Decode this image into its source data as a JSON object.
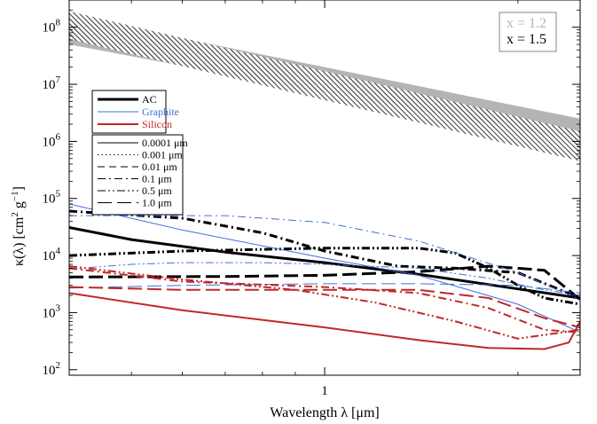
{
  "chart_data": {
    "type": "line",
    "xlabel": "Wavelength λ [μm]",
    "ylabel": "κ(λ) [cm² g⁻¹]",
    "ylabel_parts": {
      "main": "κ(λ) [cm",
      "sup1": "2",
      "mid": " g",
      "sup2": "−1",
      "end": "]"
    },
    "x_scale": "log",
    "y_scale": "log",
    "xlim": [
      0.4,
      2.5
    ],
    "ylim": [
      80,
      300000000
    ],
    "x_ticks": [
      {
        "value": 1,
        "label": "1"
      }
    ],
    "y_ticks": [
      {
        "value": 100,
        "base": "10",
        "exp": "2"
      },
      {
        "value": 1000,
        "base": "10",
        "exp": "3"
      },
      {
        "value": 10000,
        "base": "10",
        "exp": "4"
      },
      {
        "value": 100000,
        "base": "10",
        "exp": "5"
      },
      {
        "value": 1000000,
        "base": "10",
        "exp": "6"
      },
      {
        "value": 10000000,
        "base": "10",
        "exp": "7"
      },
      {
        "value": 100000000,
        "base": "10",
        "exp": "8"
      }
    ],
    "bands": [
      {
        "name": "x = 1.2",
        "color": "#b4b4b4",
        "fill": "solid",
        "x": [
          0.4,
          2.5
        ],
        "upper": [
          160000000,
          2500000
        ],
        "lower": [
          50000000,
          1000000
        ]
      },
      {
        "name": "x = 1.5",
        "color": "#222222",
        "fill": "hatch",
        "x": [
          0.4,
          2.5
        ],
        "upper": [
          190000000,
          1500000
        ],
        "lower": [
          62000000,
          450000
        ]
      }
    ],
    "series": [
      {
        "material": "AC",
        "size": "0.0001 μm",
        "color": "#000000",
        "width": 3,
        "style": "solid",
        "x": [
          0.4,
          0.5,
          0.7,
          1.0,
          1.4,
          2.0,
          2.5
        ],
        "y": [
          31000,
          19000,
          11500,
          7500,
          4700,
          2600,
          1800
        ]
      },
      {
        "material": "AC",
        "size": "0.5 μm",
        "color": "#000000",
        "width": 3,
        "style": "dashdotdot",
        "x": [
          0.4,
          0.6,
          1.0,
          1.4,
          1.6,
          1.8,
          2.0,
          2.2,
          2.5
        ],
        "y": [
          10000,
          12000,
          13500,
          13500,
          11000,
          6000,
          3000,
          1800,
          1400
        ]
      },
      {
        "material": "AC",
        "size": "0.1 μm",
        "color": "#000000",
        "width": 3,
        "style": "dashdot",
        "x": [
          0.4,
          0.6,
          0.8,
          1.0,
          1.3,
          1.6,
          2.0,
          2.5
        ],
        "y": [
          60000,
          45000,
          25000,
          12000,
          6500,
          6000,
          5000,
          1800
        ]
      },
      {
        "material": "AC",
        "size": "1.0 μm",
        "color": "#000000",
        "width": 3,
        "style": "longdash",
        "x": [
          0.4,
          0.7,
          1.0,
          1.4,
          1.8,
          2.0,
          2.2,
          2.5
        ],
        "y": [
          4200,
          4300,
          4500,
          5200,
          6500,
          6000,
          5500,
          1700
        ]
      },
      {
        "material": "Graphite",
        "size": "0.0001 μm",
        "color": "#4070d8",
        "width": 1,
        "style": "solid",
        "x": [
          0.4,
          0.6,
          1.0,
          1.4,
          2.0,
          2.5
        ],
        "y": [
          80000,
          28000,
          9000,
          4500,
          1400,
          450
        ]
      },
      {
        "material": "Graphite",
        "size": "0.5 μm",
        "color": "#4070d8",
        "width": 1,
        "style": "dashdotdot",
        "x": [
          0.4,
          0.5,
          0.6,
          0.8,
          1.0,
          1.4,
          1.8,
          2.2,
          2.5
        ],
        "y": [
          5800,
          7000,
          7500,
          7500,
          7000,
          6000,
          4000,
          2500,
          2000
        ]
      },
      {
        "material": "Graphite",
        "size": "0.1 μm",
        "color": "#4070d8",
        "width": 1,
        "style": "dashdot",
        "x": [
          0.4,
          0.7,
          1.0,
          1.4,
          2.0,
          2.5
        ],
        "y": [
          50000,
          50000,
          38000,
          18000,
          5000,
          1700
        ]
      },
      {
        "material": "Graphite",
        "size": "1.0 μm",
        "color": "#4070d8",
        "width": 1,
        "style": "longdash",
        "x": [
          0.4,
          0.6,
          1.0,
          1.4,
          2.0,
          2.5
        ],
        "y": [
          2700,
          3000,
          3200,
          3200,
          3000,
          2200
        ]
      },
      {
        "material": "Silicon",
        "size": "0.0001 μm",
        "color": "#c02828",
        "width": 2,
        "style": "solid",
        "x": [
          0.4,
          0.6,
          1.0,
          1.4,
          1.8,
          2.2,
          2.4,
          2.5
        ],
        "y": [
          2200,
          1100,
          550,
          330,
          240,
          230,
          300,
          700
        ]
      },
      {
        "material": "Silicon",
        "size": "0.5 μm",
        "color": "#c02828",
        "width": 2,
        "style": "dashdotdot",
        "x": [
          0.4,
          0.6,
          0.9,
          1.2,
          1.6,
          2.0,
          2.5
        ],
        "y": [
          6500,
          3800,
          2500,
          1500,
          700,
          350,
          500
        ]
      },
      {
        "material": "Silicon",
        "size": "0.1 μm",
        "color": "#c02828",
        "width": 2,
        "style": "dashdot",
        "x": [
          0.4,
          0.6,
          1.0,
          1.4,
          1.8,
          2.2,
          2.5
        ],
        "y": [
          6000,
          3500,
          2800,
          2200,
          1200,
          500,
          450
        ]
      },
      {
        "material": "Silicon",
        "size": "1.0 μm",
        "color": "#c02828",
        "width": 2,
        "style": "longdash",
        "x": [
          0.4,
          0.6,
          1.0,
          1.4,
          1.8,
          2.2,
          2.5
        ],
        "y": [
          2800,
          2500,
          2500,
          2500,
          1800,
          800,
          550
        ]
      }
    ],
    "legend_material": [
      {
        "label": "AC",
        "color": "#000000",
        "width": 3
      },
      {
        "label": "Graphite",
        "color": "#4070d8",
        "width": 1
      },
      {
        "label": "Silicon",
        "color": "#c02828",
        "width": 2
      }
    ],
    "legend_size": [
      {
        "label": "0.0001 μm",
        "style": "solid"
      },
      {
        "label": "0.001 μm",
        "style": "dotted"
      },
      {
        "label": "0.01 μm",
        "style": "dashed"
      },
      {
        "label": "0.1 μm",
        "style": "dashdot"
      },
      {
        "label": "0.5 μm",
        "style": "dashdotdot"
      },
      {
        "label": "1.0 μm",
        "style": "longdash"
      }
    ],
    "legend_x": [
      {
        "label": "x = 1.2",
        "color": "#b4b4b4"
      },
      {
        "label": "x = 1.5",
        "color": "#000000"
      }
    ],
    "legend_placement": {
      "material": "left",
      "size": "left",
      "x_values": "top-right"
    },
    "grid": false
  }
}
